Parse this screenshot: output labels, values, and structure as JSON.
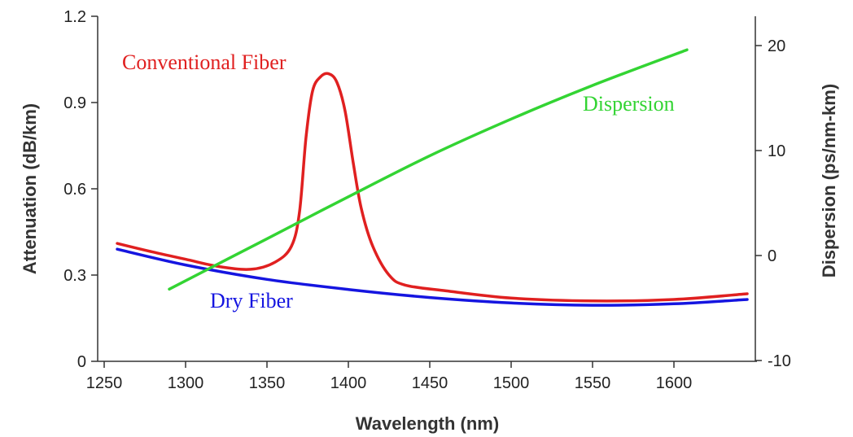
{
  "chart_data": {
    "type": "line",
    "title": "",
    "xlabel": "Wavelength (nm)",
    "ylabel_left": "Attenuation (dB/km)",
    "ylabel_right": "Dispersion (ps/nm-km)",
    "xlim": [
      1230,
      1650
    ],
    "ylim_left": [
      0,
      1.2
    ],
    "ylim_right": [
      -10,
      25
    ],
    "x_ticks": [
      1250,
      1300,
      1350,
      1400,
      1450,
      1500,
      1550,
      1600
    ],
    "y_ticks_left": [
      0,
      0.3,
      0.6,
      0.9,
      1.2
    ],
    "y_ticks_left_labels": [
      "0",
      "0.3",
      "0.6",
      "0.9",
      "1.2"
    ],
    "y_ticks_right": [
      -10,
      0,
      10,
      20
    ],
    "y_ticks_right_labels": [
      "-10",
      "0",
      "10",
      "20"
    ],
    "grid": false,
    "series": [
      {
        "name": "Conventional Fiber",
        "axis": "left",
        "color": "#e02020",
        "x": [
          1258,
          1280,
          1300,
          1320,
          1340,
          1355,
          1365,
          1370,
          1374,
          1378,
          1383,
          1388,
          1393,
          1398,
          1403,
          1408,
          1415,
          1425,
          1435,
          1460,
          1500,
          1550,
          1600,
          1645
        ],
        "y": [
          0.41,
          0.38,
          0.355,
          0.33,
          0.32,
          0.345,
          0.4,
          0.52,
          0.78,
          0.94,
          0.99,
          1.0,
          0.97,
          0.87,
          0.69,
          0.53,
          0.4,
          0.3,
          0.265,
          0.245,
          0.22,
          0.21,
          0.215,
          0.235
        ]
      },
      {
        "name": "Dry Fiber",
        "axis": "left",
        "color": "#1515e0",
        "x": [
          1258,
          1300,
          1350,
          1400,
          1450,
          1500,
          1550,
          1600,
          1645
        ],
        "y": [
          0.39,
          0.335,
          0.285,
          0.25,
          0.222,
          0.203,
          0.195,
          0.2,
          0.215
        ]
      },
      {
        "name": "Dispersion",
        "axis": "right",
        "color": "#33d433",
        "x": [
          1290,
          1350,
          1400,
          1450,
          1500,
          1550,
          1608
        ],
        "y": [
          -3.2,
          1.6,
          5.6,
          9.5,
          13.0,
          16.2,
          19.6
        ]
      }
    ]
  }
}
